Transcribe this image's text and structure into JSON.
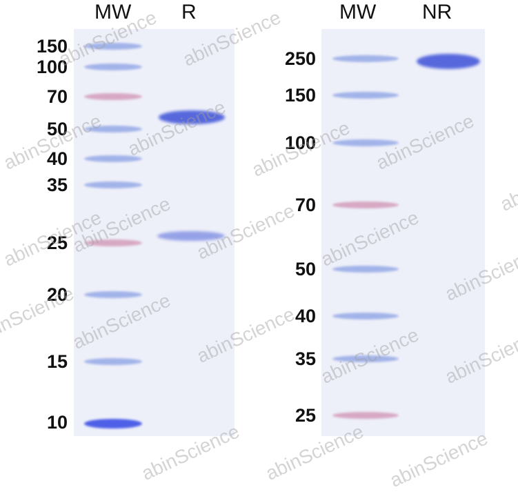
{
  "watermark": "abinScience",
  "left_gel": {
    "lanes": [
      "MW",
      "R"
    ],
    "markers": [
      "150",
      "100",
      "70",
      "50",
      "40",
      "35",
      "25",
      "20",
      "15",
      "10"
    ]
  },
  "right_gel": {
    "lanes": [
      "MW",
      "NR"
    ],
    "markers": [
      "250",
      "150",
      "100",
      "70",
      "50",
      "40",
      "35",
      "25"
    ]
  },
  "colors": {
    "band_blue": "#4a5fd8",
    "marker_pink": "#c98aa8",
    "gel_bg": "#eef0f9"
  }
}
